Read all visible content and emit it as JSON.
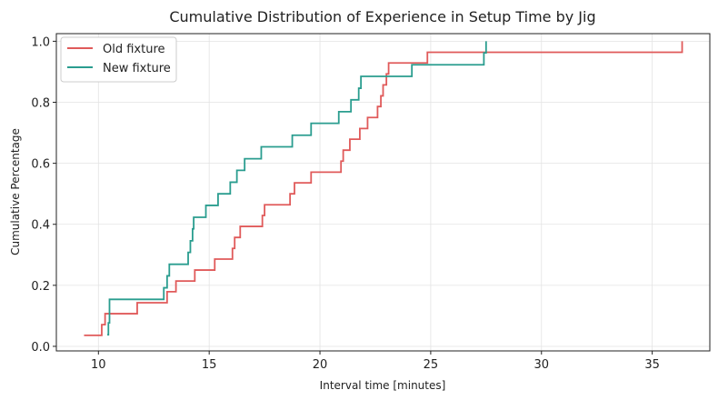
{
  "chart_data": {
    "type": "line",
    "step": "post",
    "title": "Cumulative Distribution of Experience in Setup Time by Jig",
    "xlabel": "Interval time [minutes]",
    "ylabel": "Cumulative Percentage",
    "xlim": [
      8.1,
      37.6
    ],
    "ylim": [
      -0.015,
      1.025
    ],
    "xticks": [
      10,
      15,
      20,
      25,
      30,
      35
    ],
    "yticks": [
      0.0,
      0.2,
      0.4,
      0.6,
      0.8,
      1.0
    ],
    "xtick_labels": [
      "10",
      "15",
      "20",
      "25",
      "30",
      "35"
    ],
    "ytick_labels": [
      "0.0",
      "0.2",
      "0.4",
      "0.6",
      "0.8",
      "1.0"
    ],
    "grid": true,
    "legend_position": "top-left",
    "series": [
      {
        "name": "Old fixture",
        "color": "#e05a5a",
        "x": [
          9.35,
          10.15,
          10.3,
          11.75,
          13.1,
          13.5,
          14.35,
          15.25,
          16.05,
          16.15,
          16.4,
          17.4,
          17.5,
          18.65,
          18.85,
          19.6,
          20.95,
          21.05,
          21.35,
          21.8,
          22.15,
          22.6,
          22.75,
          22.85,
          23.0,
          23.1,
          24.85,
          36.35
        ],
        "y": [
          0.036,
          0.071,
          0.107,
          0.143,
          0.179,
          0.214,
          0.25,
          0.286,
          0.321,
          0.357,
          0.393,
          0.429,
          0.464,
          0.5,
          0.536,
          0.571,
          0.607,
          0.643,
          0.679,
          0.714,
          0.75,
          0.786,
          0.821,
          0.857,
          0.893,
          0.929,
          0.964,
          1.0
        ]
      },
      {
        "name": "New fixture",
        "color": "#2a9d8f",
        "x": [
          10.4,
          10.45,
          10.5,
          12.95,
          13.1,
          13.2,
          14.05,
          14.15,
          14.25,
          14.3,
          14.4,
          14.85,
          15.4,
          15.95,
          16.25,
          16.6,
          17.35,
          18.75,
          19.6,
          20.85,
          21.4,
          21.75,
          21.85,
          21.95,
          24.15,
          27.4,
          27.5
        ],
        "y": [
          0.038,
          0.077,
          0.154,
          0.192,
          0.231,
          0.269,
          0.308,
          0.346,
          0.385,
          0.423,
          0.423,
          0.462,
          0.5,
          0.538,
          0.577,
          0.615,
          0.654,
          0.692,
          0.731,
          0.769,
          0.808,
          0.846,
          0.885,
          0.885,
          0.923,
          0.962,
          1.0
        ]
      }
    ]
  }
}
